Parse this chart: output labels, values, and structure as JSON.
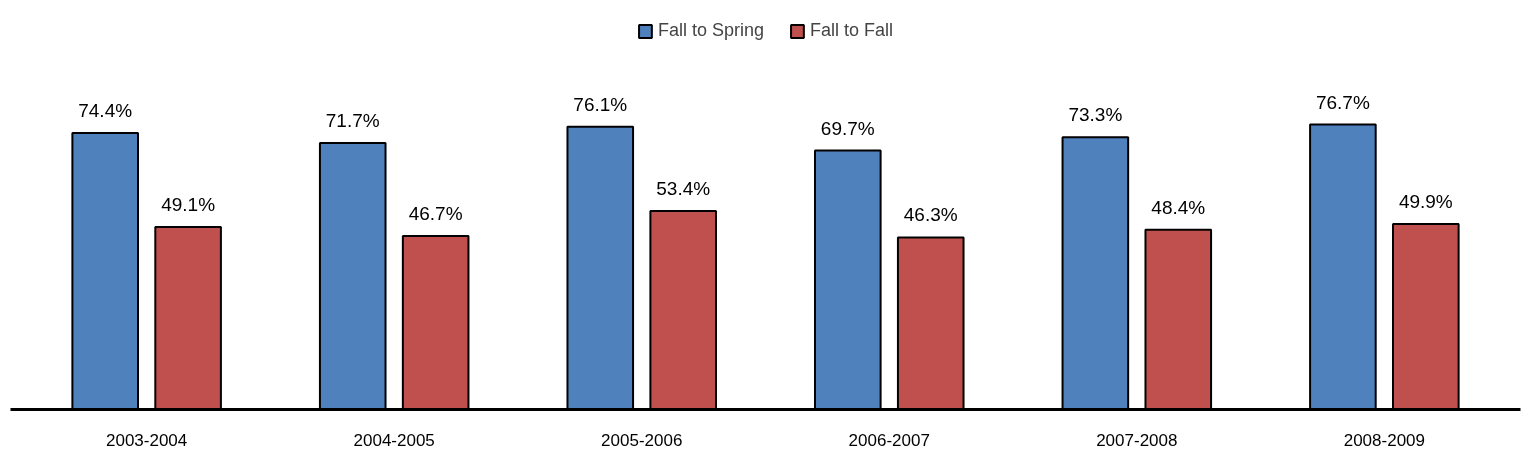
{
  "chart_data": {
    "type": "bar",
    "categories": [
      "2003-2004",
      "2004-2005",
      "2005-2006",
      "2006-2007",
      "2007-2008",
      "2008-2009"
    ],
    "series": [
      {
        "name": "Fall to Spring",
        "color": "#4f81bd",
        "values": [
          74.4,
          71.7,
          76.1,
          69.7,
          73.3,
          76.7
        ],
        "value_labels": [
          "74.4%",
          "71.7%",
          "76.1%",
          "69.7%",
          "73.3%",
          "76.7%"
        ]
      },
      {
        "name": "Fall to Fall",
        "color": "#c0504d",
        "values": [
          49.1,
          46.7,
          53.4,
          46.3,
          48.4,
          49.9
        ],
        "value_labels": [
          "49.1%",
          "46.7%",
          "53.4%",
          "46.3%",
          "48.4%",
          "49.9%"
        ]
      }
    ],
    "tick_labels": "x",
    "grid": false,
    "legend": "top"
  }
}
